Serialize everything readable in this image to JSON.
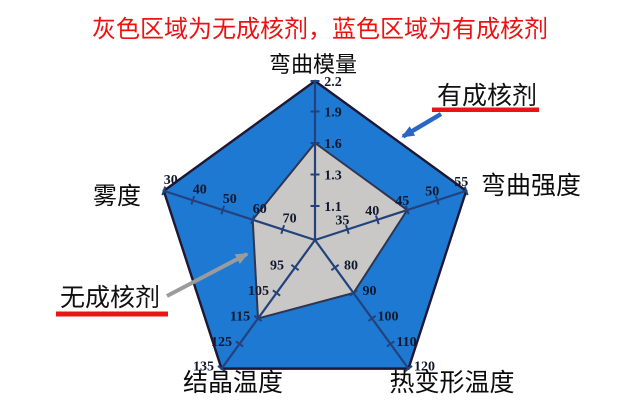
{
  "title": "灰色区域为无成核剂，蓝色区域为有成核剂",
  "annotations": {
    "with_agent": {
      "label": "有成核剂"
    },
    "without_agent": {
      "label": "无成核剂"
    }
  },
  "chart_data": {
    "type": "radar",
    "shape": "pentagon",
    "axes": [
      {
        "name": "弯曲模量",
        "ticks": [
          "1.1",
          "1.3",
          "1.6",
          "1.9",
          "2.2"
        ]
      },
      {
        "name": "弯曲强度",
        "ticks": [
          "35",
          "40",
          "45",
          "50",
          "55"
        ]
      },
      {
        "name": "热变形温度",
        "ticks": [
          "80",
          "90",
          "100",
          "110",
          "120"
        ]
      },
      {
        "name": "结晶温度",
        "ticks": [
          "95",
          "105",
          "115",
          "125",
          "135"
        ]
      },
      {
        "name": "雾度",
        "ticks": [
          "70",
          "60",
          "50",
          "40",
          "30"
        ]
      }
    ],
    "series": [
      {
        "name": "无成核剂",
        "color": "#c9c8c6",
        "values": {
          "弯曲模量": 1.6,
          "弯曲强度": 45,
          "热变形温度": 90,
          "结晶温度": 115,
          "雾度": 60
        }
      },
      {
        "name": "有成核剂",
        "color": "#1e79d2",
        "values": {
          "弯曲模量": 2.2,
          "弯曲强度": 55,
          "热变形温度": 120,
          "结晶温度": 135,
          "雾度": 30
        }
      }
    ],
    "legend_position": "annotated-arrows",
    "grid": false,
    "colors": {
      "blue_region": "#1e79d2",
      "gray_region": "#c9c8c6",
      "outer_border": "#1f1733",
      "gray_border": "#2e3550",
      "axis_line": "#23427c",
      "tick_text": "#10182d",
      "title_red": "#ee1111",
      "underline_red": "#e91414",
      "arrow_blue": "#2a67c5",
      "arrow_gray": "#9b9b9b"
    }
  }
}
